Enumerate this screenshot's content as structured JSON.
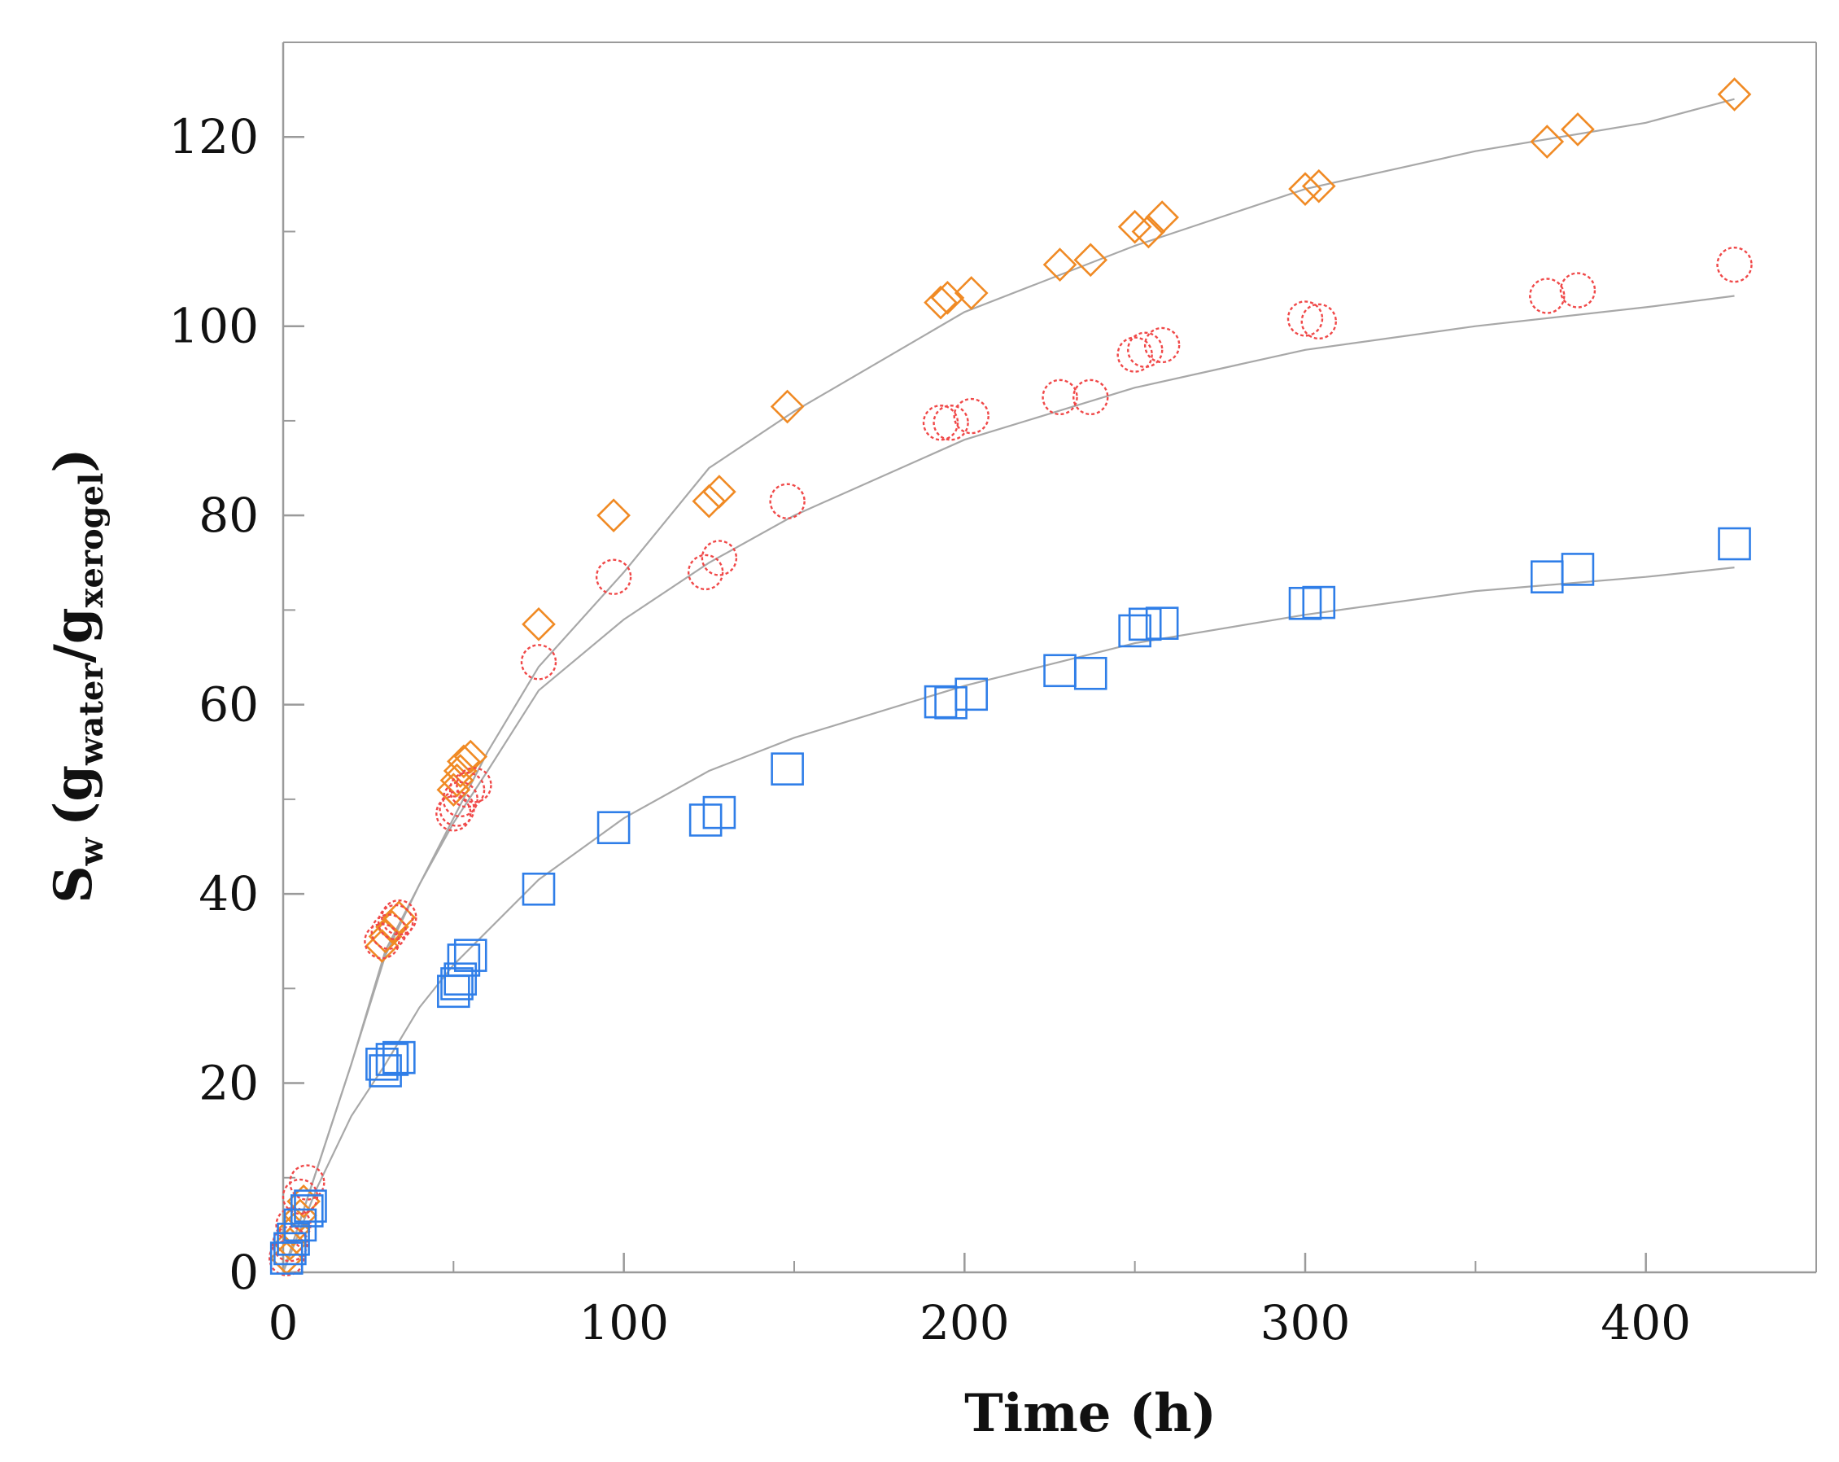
{
  "chart_data": {
    "type": "scatter",
    "title": "",
    "xlabel": "Time (h)",
    "ylabel": {
      "main": "S",
      "main_sub": "w",
      "open": "(",
      "numerator": "g",
      "numerator_sub": "water",
      "slash": "/",
      "denominator": "g",
      "denominator_sub": "xerogel",
      "close": ")"
    },
    "xlim": [
      0,
      450
    ],
    "ylim": [
      0,
      130
    ],
    "x_major_ticks": [
      0,
      100,
      200,
      300,
      400
    ],
    "x_tick_labels": [
      "0",
      "100",
      "200",
      "300",
      "400"
    ],
    "x_minor_ticks": [
      50,
      150,
      250,
      350,
      450
    ],
    "y_major_ticks": [
      0,
      20,
      40,
      60,
      80,
      100,
      120
    ],
    "y_tick_labels": [
      "0",
      "20",
      "40",
      "60",
      "80",
      "100",
      "120"
    ],
    "y_minor_ticks": [
      10,
      30,
      50,
      70,
      90,
      110
    ],
    "grid": false,
    "colors": {
      "axis": "#9a9a9a",
      "fit_line": "#a8a8a8"
    },
    "series": [
      {
        "name": "diamond series",
        "marker": "diamond",
        "color": "#f08a24",
        "points": [
          [
            1,
            1.5
          ],
          [
            2,
            3
          ],
          [
            3,
            4.5
          ],
          [
            5,
            6
          ],
          [
            6,
            7.5
          ],
          [
            29,
            34.5
          ],
          [
            30,
            35.5
          ],
          [
            32,
            36.5
          ],
          [
            34,
            37.5
          ],
          [
            50,
            51
          ],
          [
            51,
            52
          ],
          [
            52,
            53
          ],
          [
            53,
            54
          ],
          [
            55,
            54.5
          ],
          [
            75,
            68.5
          ],
          [
            97,
            80
          ],
          [
            125,
            81.5
          ],
          [
            128,
            82.5
          ],
          [
            148,
            91.5
          ],
          [
            193,
            102.5
          ],
          [
            195,
            103
          ],
          [
            202,
            103.5
          ],
          [
            228,
            106.5
          ],
          [
            237,
            107
          ],
          [
            250,
            110.5
          ],
          [
            254,
            110
          ],
          [
            258,
            111.5
          ],
          [
            300,
            114.5
          ],
          [
            304,
            114.8
          ],
          [
            371,
            119.5
          ],
          [
            380,
            120.8
          ],
          [
            426,
            124.5
          ]
        ],
        "fit": [
          [
            0,
            0
          ],
          [
            10,
            11
          ],
          [
            20,
            22
          ],
          [
            30,
            34
          ],
          [
            40,
            41
          ],
          [
            50,
            48
          ],
          [
            60,
            55
          ],
          [
            75,
            64
          ],
          [
            100,
            74
          ],
          [
            125,
            85
          ],
          [
            150,
            91
          ],
          [
            200,
            101.5
          ],
          [
            250,
            108.5
          ],
          [
            300,
            114.5
          ],
          [
            350,
            118.5
          ],
          [
            400,
            121.5
          ],
          [
            426,
            124
          ]
        ]
      },
      {
        "name": "circle series",
        "marker": "circle",
        "color": "#f04848",
        "points": [
          [
            1,
            1.5
          ],
          [
            2,
            3
          ],
          [
            3,
            5
          ],
          [
            5,
            8
          ],
          [
            7,
            9.5
          ],
          [
            29,
            35
          ],
          [
            31,
            36
          ],
          [
            33,
            37
          ],
          [
            34,
            37.5
          ],
          [
            50,
            48.5
          ],
          [
            51,
            49
          ],
          [
            52,
            50
          ],
          [
            54,
            51
          ],
          [
            56,
            51.5
          ],
          [
            75,
            64.5
          ],
          [
            97,
            73.5
          ],
          [
            124,
            74
          ],
          [
            128,
            75.5
          ],
          [
            148,
            81.5
          ],
          [
            193,
            89.8
          ],
          [
            196,
            89.8
          ],
          [
            202,
            90.5
          ],
          [
            228,
            92.5
          ],
          [
            237,
            92.5
          ],
          [
            250,
            97
          ],
          [
            253,
            97.5
          ],
          [
            258,
            98
          ],
          [
            300,
            100.8
          ],
          [
            304,
            100.5
          ],
          [
            371,
            103.2
          ],
          [
            380,
            103.8
          ],
          [
            426,
            106.5
          ]
        ],
        "fit": [
          [
            0,
            0
          ],
          [
            10,
            11
          ],
          [
            20,
            22
          ],
          [
            30,
            33.5
          ],
          [
            40,
            41
          ],
          [
            50,
            47.5
          ],
          [
            60,
            53
          ],
          [
            75,
            61.5
          ],
          [
            100,
            69
          ],
          [
            125,
            75
          ],
          [
            150,
            80
          ],
          [
            200,
            88
          ],
          [
            250,
            93.5
          ],
          [
            300,
            97.5
          ],
          [
            350,
            100
          ],
          [
            400,
            102
          ],
          [
            426,
            103.2
          ]
        ]
      },
      {
        "name": "square series",
        "marker": "square",
        "color": "#2f7ee8",
        "points": [
          [
            1,
            1.5
          ],
          [
            2,
            2.5
          ],
          [
            3,
            3.5
          ],
          [
            5,
            5
          ],
          [
            7,
            6.5
          ],
          [
            8,
            7
          ],
          [
            29,
            22
          ],
          [
            30,
            21.3
          ],
          [
            32,
            22.5
          ],
          [
            34,
            22.7
          ],
          [
            50,
            29.7
          ],
          [
            51,
            30.5
          ],
          [
            52,
            31
          ],
          [
            53,
            33
          ],
          [
            55,
            33.5
          ],
          [
            75,
            40.5
          ],
          [
            97,
            47
          ],
          [
            124,
            47.8
          ],
          [
            128,
            48.6
          ],
          [
            148,
            53.2
          ],
          [
            193,
            60.3
          ],
          [
            196,
            60.2
          ],
          [
            202,
            61.1
          ],
          [
            228,
            63.6
          ],
          [
            237,
            63.3
          ],
          [
            250,
            67.8
          ],
          [
            253,
            68.5
          ],
          [
            258,
            68.6
          ],
          [
            300,
            70.7
          ],
          [
            304,
            70.8
          ],
          [
            371,
            73.5
          ],
          [
            380,
            74.3
          ],
          [
            426,
            77
          ]
        ],
        "fit": [
          [
            0,
            0
          ],
          [
            10,
            9
          ],
          [
            20,
            16.5
          ],
          [
            30,
            22
          ],
          [
            40,
            28
          ],
          [
            50,
            32.5
          ],
          [
            75,
            41.5
          ],
          [
            100,
            48
          ],
          [
            125,
            53
          ],
          [
            150,
            56.5
          ],
          [
            200,
            62
          ],
          [
            250,
            66.5
          ],
          [
            300,
            69.5
          ],
          [
            350,
            72
          ],
          [
            400,
            73.5
          ],
          [
            426,
            74.5
          ]
        ]
      }
    ]
  }
}
